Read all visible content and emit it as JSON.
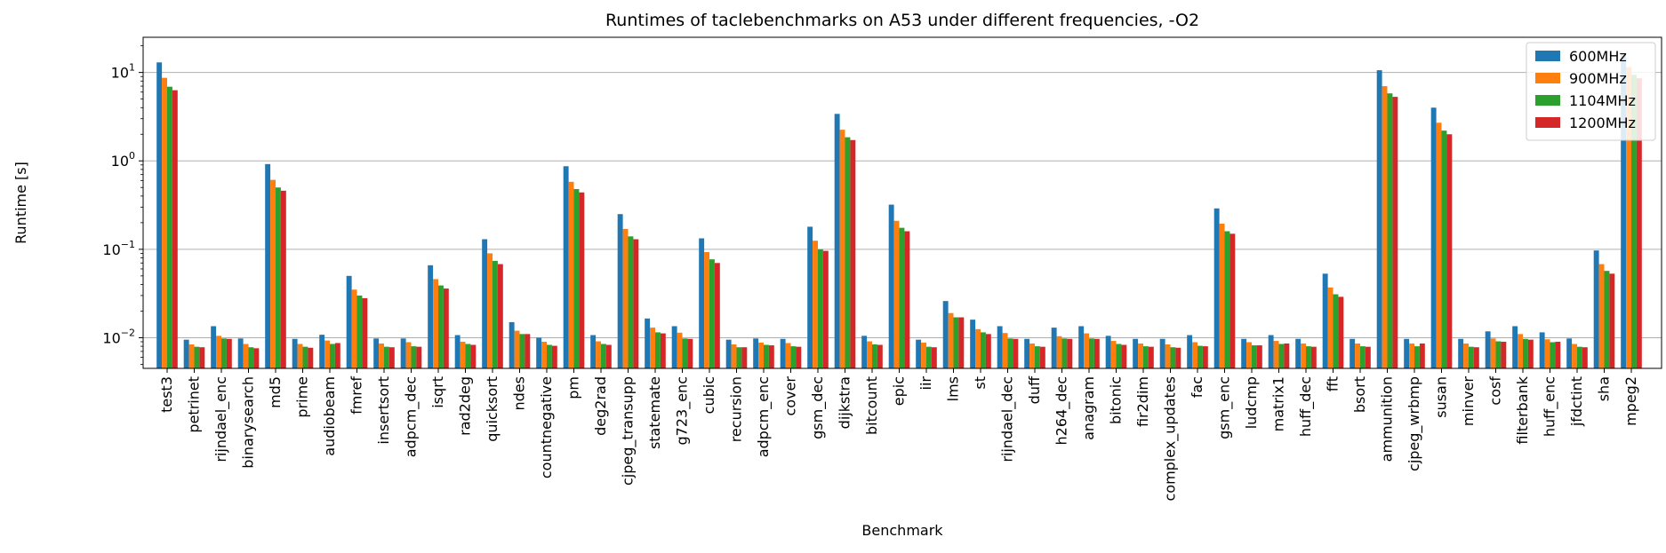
{
  "chart_data": {
    "type": "bar",
    "title": "Runtimes of taclebenchmarks on A53 under different frequencies, -O2",
    "xlabel": "Benchmark",
    "ylabel": "Runtime [s]",
    "yscale": "log",
    "ylim": [
      0.0045,
      25
    ],
    "yticks": [
      {
        "value": 0.01,
        "base": "10",
        "exp": "−2"
      },
      {
        "value": 0.1,
        "base": "10",
        "exp": "−1"
      },
      {
        "value": 1,
        "base": "10",
        "exp": "0"
      },
      {
        "value": 10,
        "base": "10",
        "exp": "1"
      }
    ],
    "grid": "horizontal",
    "legend_position": "top-right",
    "categories": [
      "test3",
      "petrinet",
      "rijndael_enc",
      "binarysearch",
      "md5",
      "prime",
      "audiobeam",
      "fmref",
      "insertsort",
      "adpcm_dec",
      "isqrt",
      "rad2deg",
      "quicksort",
      "ndes",
      "countnegative",
      "pm",
      "deg2rad",
      "cjpeg_transupp",
      "statemate",
      "g723_enc",
      "cubic",
      "recursion",
      "adpcm_enc",
      "cover",
      "gsm_dec",
      "dijkstra",
      "bitcount",
      "epic",
      "iir",
      "lms",
      "st",
      "rijndael_dec",
      "duff",
      "h264_dec",
      "anagram",
      "bitonic",
      "fir2dim",
      "complex_updates",
      "fac",
      "gsm_enc",
      "ludcmp",
      "matrix1",
      "huff_dec",
      "fft",
      "bsort",
      "ammunition",
      "cjpeg_wrbmp",
      "susan",
      "minver",
      "cosf",
      "filterbank",
      "huff_enc",
      "jfdctint",
      "sha",
      "mpeg2"
    ],
    "series": [
      {
        "name": "600MHz",
        "color": "#1f77b4",
        "values": [
          13,
          0.0095,
          0.0135,
          0.0098,
          0.92,
          0.0097,
          0.0108,
          0.05,
          0.0098,
          0.0098,
          0.066,
          0.0107,
          0.13,
          0.015,
          0.01,
          0.87,
          0.0107,
          0.25,
          0.0165,
          0.0135,
          0.133,
          0.0095,
          0.0098,
          0.0097,
          0.18,
          3.4,
          0.0105,
          0.32,
          0.0095,
          0.026,
          0.016,
          0.0135,
          0.0097,
          0.013,
          0.0135,
          0.0105,
          0.0097,
          0.0097,
          0.0107,
          0.29,
          0.0097,
          0.0107,
          0.0097,
          0.053,
          0.0097,
          10.6,
          0.0097,
          4.0,
          0.0097,
          0.0118,
          0.0135,
          0.0115,
          0.0098,
          0.097,
          16.5
        ]
      },
      {
        "name": "900MHz",
        "color": "#ff7f0e",
        "values": [
          8.7,
          0.0084,
          0.0105,
          0.0085,
          0.61,
          0.0085,
          0.0093,
          0.035,
          0.0086,
          0.0089,
          0.046,
          0.009,
          0.09,
          0.012,
          0.009,
          0.58,
          0.0091,
          0.17,
          0.013,
          0.0114,
          0.093,
          0.0084,
          0.0088,
          0.0087,
          0.125,
          2.25,
          0.0091,
          0.21,
          0.0088,
          0.019,
          0.0125,
          0.0113,
          0.0086,
          0.0104,
          0.0112,
          0.0092,
          0.0086,
          0.0084,
          0.0089,
          0.195,
          0.0089,
          0.0092,
          0.0086,
          0.037,
          0.0086,
          7.0,
          0.0086,
          2.7,
          0.0086,
          0.0098,
          0.011,
          0.0096,
          0.0085,
          0.068,
          11.5
        ]
      },
      {
        "name": "1104MHz",
        "color": "#2ca02c",
        "values": [
          6.9,
          0.0079,
          0.0098,
          0.0078,
          0.5,
          0.0079,
          0.0085,
          0.03,
          0.0079,
          0.008,
          0.039,
          0.0085,
          0.074,
          0.011,
          0.0083,
          0.48,
          0.0085,
          0.14,
          0.0115,
          0.0098,
          0.077,
          0.0078,
          0.0083,
          0.008,
          0.1,
          1.85,
          0.0084,
          0.175,
          0.0079,
          0.017,
          0.0115,
          0.0098,
          0.008,
          0.0098,
          0.0098,
          0.0085,
          0.008,
          0.0078,
          0.0081,
          0.16,
          0.0082,
          0.0085,
          0.008,
          0.031,
          0.008,
          5.8,
          0.008,
          2.2,
          0.0079,
          0.0091,
          0.0097,
          0.0089,
          0.0079,
          0.057,
          9.4
        ]
      },
      {
        "name": "1200MHz",
        "color": "#d62728",
        "values": [
          6.3,
          0.0078,
          0.0097,
          0.0076,
          0.46,
          0.0077,
          0.0087,
          0.028,
          0.0078,
          0.0079,
          0.036,
          0.0083,
          0.068,
          0.011,
          0.0081,
          0.44,
          0.0083,
          0.13,
          0.0112,
          0.0097,
          0.07,
          0.0078,
          0.0082,
          0.0079,
          0.096,
          1.72,
          0.0083,
          0.16,
          0.0078,
          0.017,
          0.011,
          0.0097,
          0.0079,
          0.0097,
          0.0097,
          0.0083,
          0.0079,
          0.0077,
          0.008,
          0.15,
          0.0082,
          0.0086,
          0.0079,
          0.029,
          0.0079,
          5.3,
          0.0086,
          2.0,
          0.0078,
          0.009,
          0.0095,
          0.009,
          0.0078,
          0.053,
          8.6
        ]
      }
    ]
  }
}
